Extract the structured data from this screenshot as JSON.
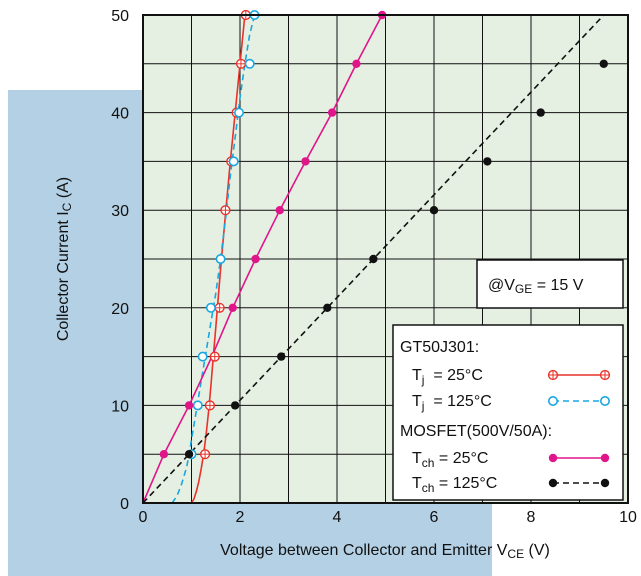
{
  "chart_data": {
    "type": "line",
    "xlabel": {
      "main": "Voltage between Collector and Emitter V",
      "sub": "CE",
      "unit": " (V)"
    },
    "ylabel": {
      "main": "Collector Current I",
      "sub": "C",
      "unit": " (A)"
    },
    "xlim": [
      0,
      10
    ],
    "ylim": [
      0,
      50
    ],
    "x_ticks": [
      "0",
      "2",
      "4",
      "6",
      "8",
      "10"
    ],
    "y_ticks": [
      "0",
      "10",
      "20",
      "30",
      "40",
      "50"
    ],
    "grid": true,
    "condition": {
      "prefix": "@V",
      "sub": "GE",
      "suffix": " = 15 V"
    },
    "legend": {
      "position": "bottom-right",
      "group1": "GT50J301:",
      "group2": "MOSFET(500V/50A):"
    },
    "series": [
      {
        "name": {
          "main": "T",
          "sub": "j",
          "suffix": "  = 25°C"
        },
        "color": "#e8322a",
        "dash": false,
        "marker": "open-crosshair",
        "curve_x": [
          1.0,
          1.05,
          1.1,
          1.15,
          1.2,
          1.25,
          1.3,
          1.35,
          1.4,
          1.45,
          1.5,
          1.6,
          1.7,
          1.8,
          1.9,
          2.0,
          2.1
        ],
        "curve_y": [
          0,
          0.4,
          1.2,
          2.2,
          3.5,
          5.0,
          7.0,
          9.3,
          12.0,
          15.0,
          18.0,
          24.0,
          29.5,
          35.0,
          40.0,
          45.0,
          50.0
        ],
        "points_x": [
          1.28,
          1.38,
          1.48,
          1.58,
          1.7,
          1.82,
          1.93,
          2.02,
          2.12
        ],
        "points_y": [
          5,
          10,
          15,
          20,
          30,
          35,
          40,
          45,
          50
        ]
      },
      {
        "name": {
          "main": "T",
          "sub": "j",
          "suffix": "  = 125°C"
        },
        "color": "#19a7e0",
        "dash": true,
        "marker": "open-circle",
        "curve_x": [
          0.6,
          0.7,
          0.8,
          0.9,
          0.95,
          1.0,
          1.1,
          1.2,
          1.3,
          1.4,
          1.5,
          1.6,
          1.7,
          1.8,
          1.9,
          2.0,
          2.1,
          2.2,
          2.3
        ],
        "curve_y": [
          0,
          0.7,
          2.0,
          3.7,
          5.0,
          6.5,
          9.5,
          12.5,
          15.5,
          18.5,
          21.5,
          25.0,
          29.0,
          33.5,
          37.5,
          41.5,
          45.0,
          48.0,
          50.0
        ],
        "points_x": [
          1.0,
          1.13,
          1.23,
          1.4,
          1.6,
          1.87,
          1.98,
          2.2,
          2.3
        ],
        "points_y": [
          5,
          10,
          15,
          20,
          25,
          35,
          40,
          45,
          50
        ]
      },
      {
        "name": {
          "main": "T",
          "sub": "ch",
          "suffix": " = 25°C"
        },
        "color": "#e0158a",
        "dash": false,
        "marker": "filled-circle",
        "curve_x": [
          0,
          0.43,
          0.95,
          1.42,
          1.85,
          2.32,
          2.82,
          3.35,
          3.9,
          4.4,
          4.93
        ],
        "curve_y": [
          0,
          5,
          10,
          15,
          20,
          25,
          30,
          35,
          40,
          45,
          50
        ],
        "points_x": [
          0.43,
          0.95,
          1.85,
          2.32,
          2.82,
          3.35,
          3.9,
          4.4,
          4.93
        ],
        "points_y": [
          5,
          10,
          20,
          25,
          30,
          35,
          40,
          45,
          50
        ]
      },
      {
        "name": {
          "main": "T",
          "sub": "ch",
          "suffix": " = 125°C"
        },
        "color": "#111111",
        "dash": true,
        "marker": "filled-circle",
        "curve_x": [
          0,
          9.5
        ],
        "curve_y": [
          0,
          50
        ],
        "points_x": [
          0.95,
          1.9,
          2.85,
          3.8,
          4.75,
          6.0,
          7.1,
          8.2,
          9.5
        ],
        "points_y": [
          5,
          10,
          15,
          20,
          25,
          30,
          35,
          40,
          45
        ]
      }
    ]
  }
}
